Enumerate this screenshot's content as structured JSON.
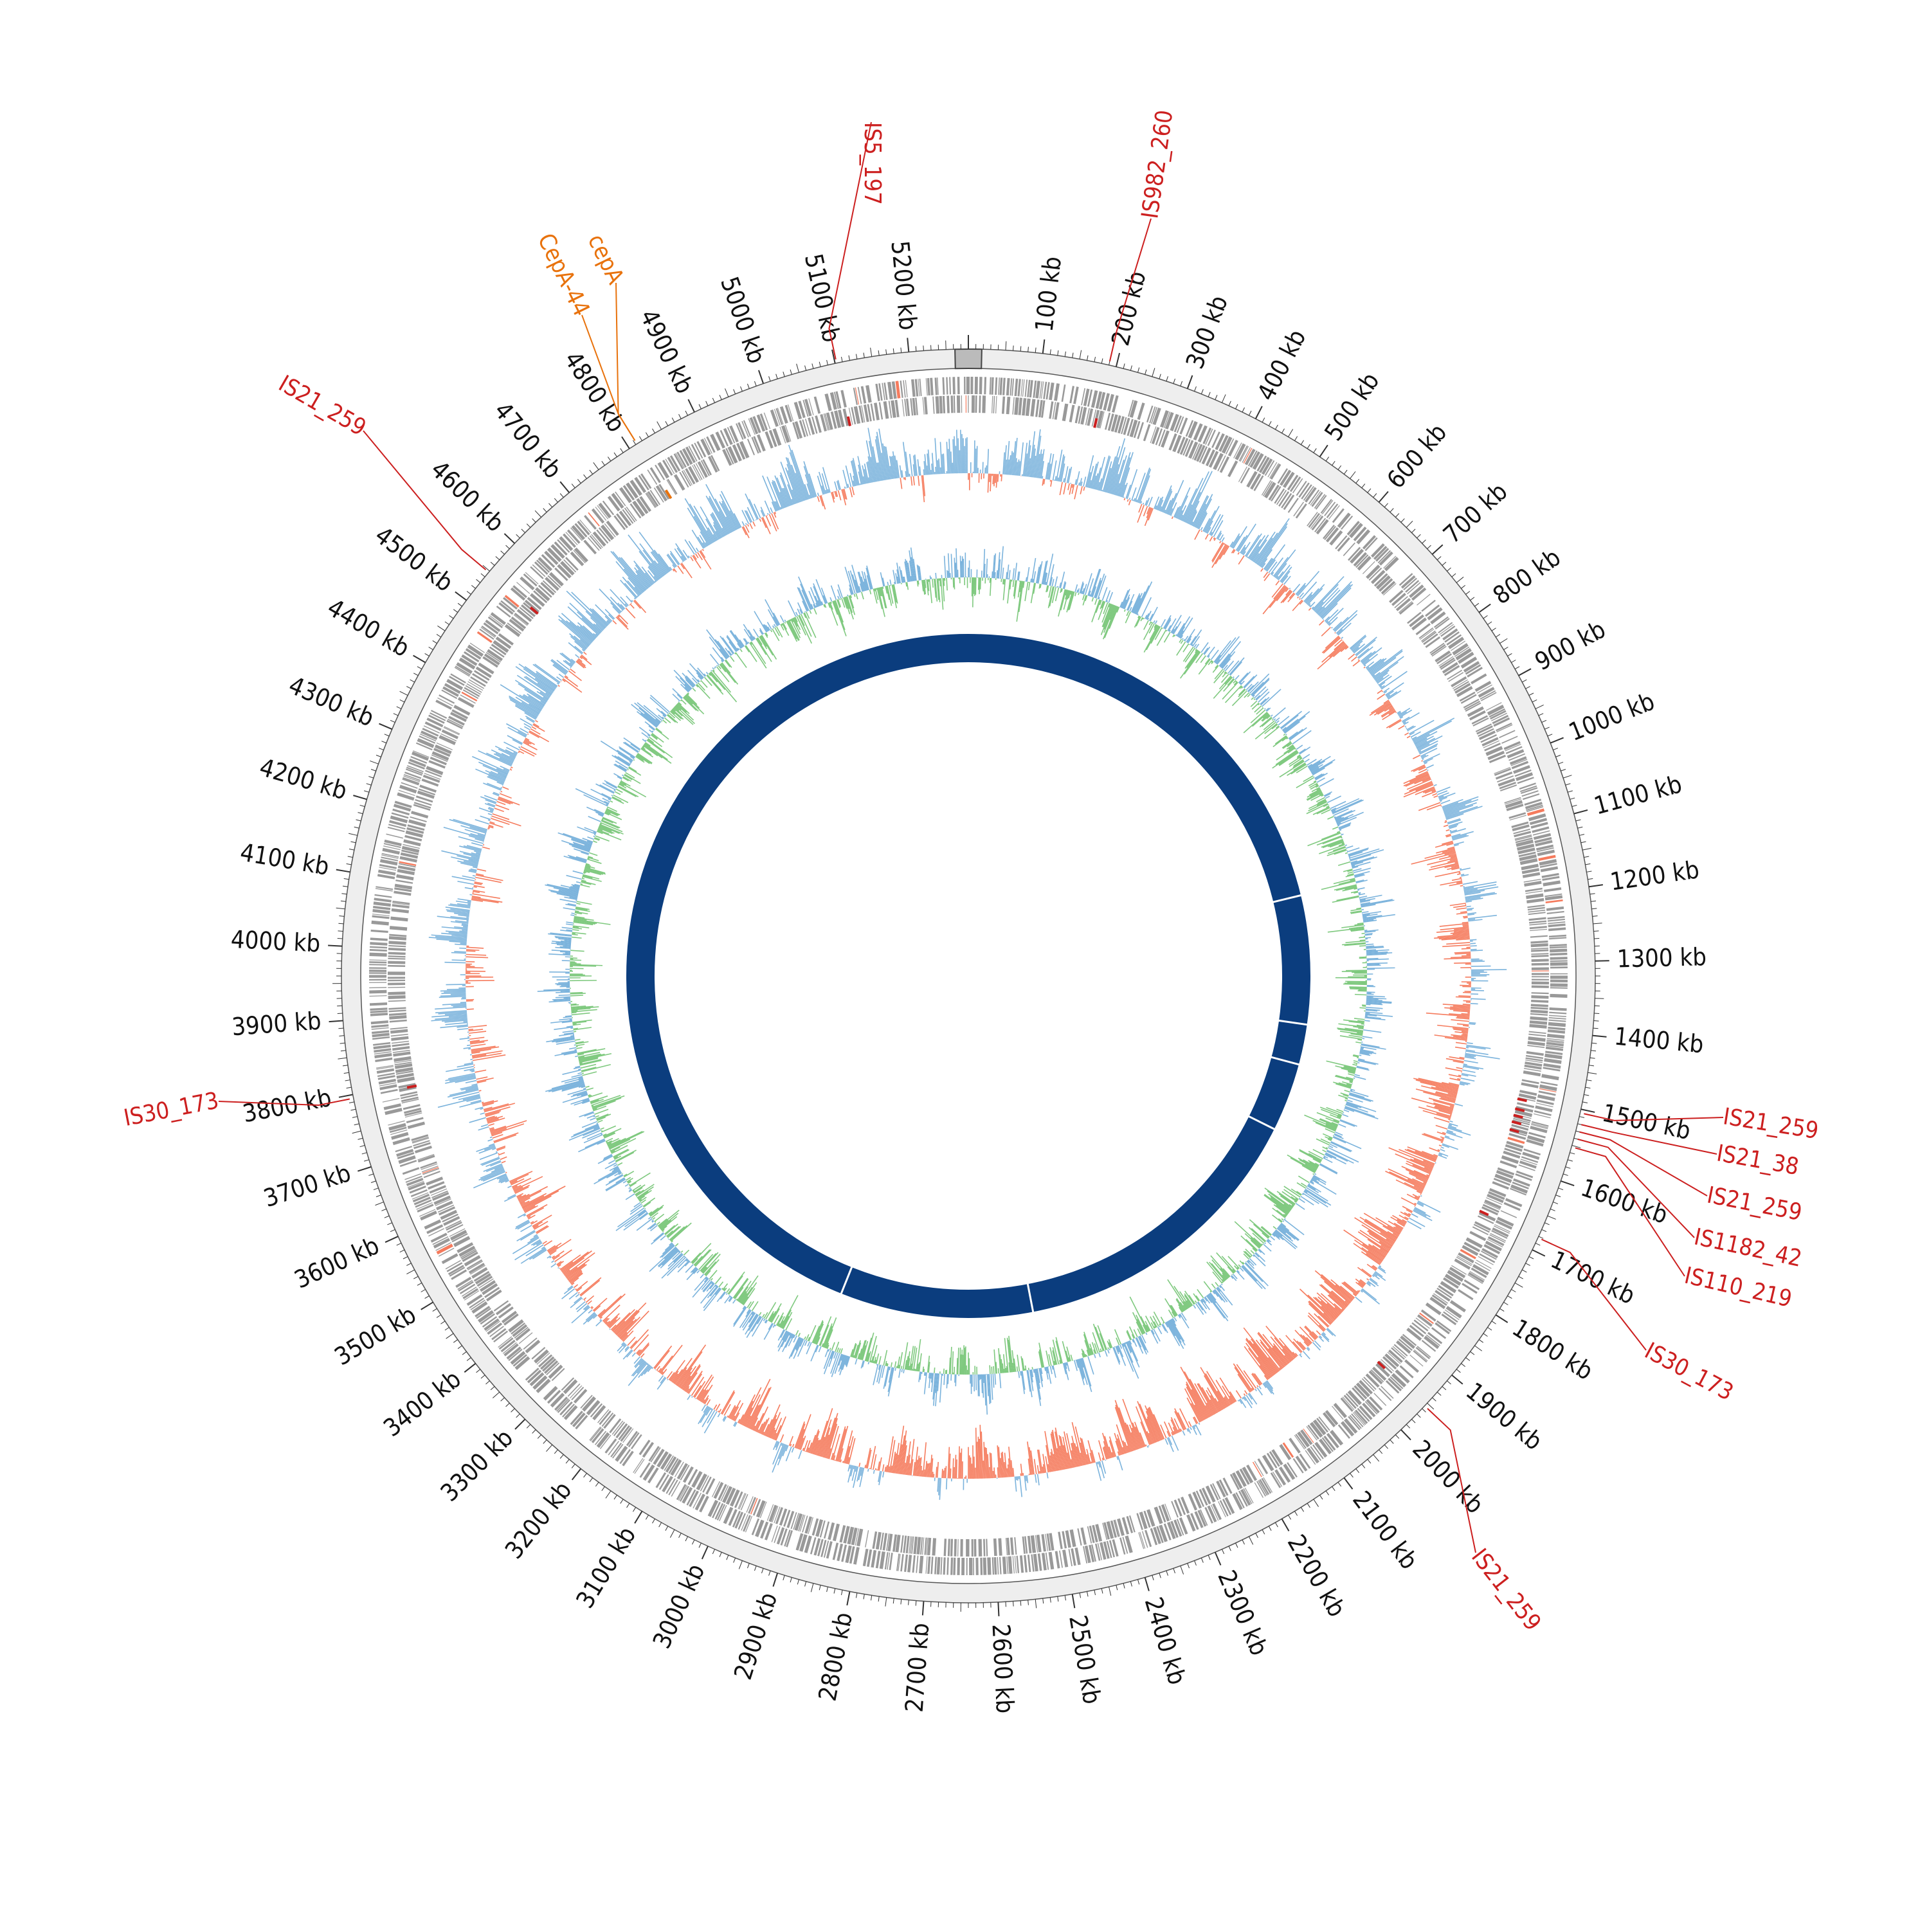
{
  "genome_map": {
    "total_length_kb": 5280,
    "scale_labels": [
      "100 kb",
      "200 kb",
      "300 kb",
      "400 kb",
      "500 kb",
      "600 kb",
      "700 kb",
      "800 kb",
      "900 kb",
      "1000 kb",
      "1100 kb",
      "1200 kb",
      "1300 kb",
      "1400 kb",
      "1500 kb",
      "1600 kb",
      "1700 kb",
      "1800 kb",
      "1900 kb",
      "2000 kb",
      "2100 kb",
      "2200 kb",
      "2300 kb",
      "2400 kb",
      "2500 kb",
      "2600 kb",
      "2700 kb",
      "2800 kb",
      "2900 kb",
      "3000 kb",
      "3100 kb",
      "3200 kb",
      "3300 kb",
      "3400 kb",
      "3500 kb",
      "3600 kb",
      "3700 kb",
      "3800 kb",
      "3900 kb",
      "4000 kb",
      "4100 kb",
      "4200 kb",
      "4300 kb",
      "4400 kb",
      "4500 kb",
      "4600 kb",
      "4700 kb",
      "4800 kb",
      "4900 kb",
      "5000 kb",
      "5100 kb",
      "5200 kb"
    ],
    "colors": {
      "is_element": "#cc1f1f",
      "resistance_gene": "#e8720c",
      "cds": "#999999",
      "gc_content_high": "#f57b5d",
      "gc_content_low": "#7bb3dc",
      "gc_skew_positive": "#7fc97f",
      "gc_skew_negative": "#7bb3dc",
      "contig": "#0b3d7e",
      "backbone": "#eeeeee"
    },
    "annotations": [
      {
        "label": "IS5_197",
        "position_kb": 5102,
        "type": "is_element"
      },
      {
        "label": "IS982_260",
        "position_kb": 190,
        "type": "is_element"
      },
      {
        "label": "cepA",
        "position_kb": 4812,
        "type": "resistance_gene"
      },
      {
        "label": "CepA-44",
        "position_kb": 4812,
        "type": "resistance_gene"
      },
      {
        "label": "IS21_259",
        "position_kb": 4548,
        "type": "is_element"
      },
      {
        "label": "IS30_173",
        "position_kb": 3795,
        "type": "is_element"
      },
      {
        "label": "IS21_259",
        "position_kb": 1505,
        "type": "is_element"
      },
      {
        "label": "IS21_38",
        "position_kb": 1520,
        "type": "is_element"
      },
      {
        "label": "IS21_259",
        "position_kb": 1530,
        "type": "is_element"
      },
      {
        "label": "IS1182_42",
        "position_kb": 1540,
        "type": "is_element"
      },
      {
        "label": "IS110_219",
        "position_kb": 1552,
        "type": "is_element"
      },
      {
        "label": "IS30_173",
        "position_kb": 1682,
        "type": "is_element"
      },
      {
        "label": "IS21_259",
        "position_kb": 1955,
        "type": "is_element"
      }
    ],
    "contig_breaks_kb": [
      1120,
      1440,
      1540,
      1710,
      2480,
      2960
    ]
  }
}
